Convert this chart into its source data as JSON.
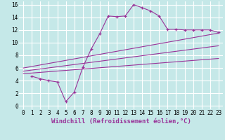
{
  "background_color": "#c5e8e8",
  "grid_color": "#ffffff",
  "line_color": "#993399",
  "xlabel": "Windchill (Refroidissement éolien,°C)",
  "xlabel_fontsize": 6.5,
  "tick_fontsize": 5.5,
  "xlim": [
    -0.5,
    23.5
  ],
  "ylim": [
    -0.5,
    16.5
  ],
  "xticks": [
    0,
    1,
    2,
    3,
    4,
    5,
    6,
    7,
    8,
    9,
    10,
    11,
    12,
    13,
    14,
    15,
    16,
    17,
    18,
    19,
    20,
    21,
    22,
    23
  ],
  "yticks": [
    0,
    2,
    4,
    6,
    8,
    10,
    12,
    14,
    16
  ],
  "series1_x": [
    1,
    2,
    3,
    4,
    5,
    6,
    7,
    8,
    9,
    10,
    11,
    12,
    13,
    14,
    15,
    16,
    17,
    18,
    19,
    20,
    21,
    22,
    23
  ],
  "series1_y": [
    4.7,
    4.3,
    4.0,
    3.8,
    0.7,
    2.2,
    6.1,
    9.0,
    11.4,
    14.2,
    14.1,
    14.2,
    16.0,
    15.5,
    15.0,
    14.2,
    12.1,
    12.1,
    12.0,
    12.0,
    12.0,
    12.0,
    11.6
  ],
  "series2_x": [
    0,
    23
  ],
  "series2_y": [
    5.1,
    7.5
  ],
  "series3_x": [
    0,
    23
  ],
  "series3_y": [
    5.5,
    9.5
  ],
  "series4_x": [
    0,
    23
  ],
  "series4_y": [
    6.0,
    11.5
  ]
}
